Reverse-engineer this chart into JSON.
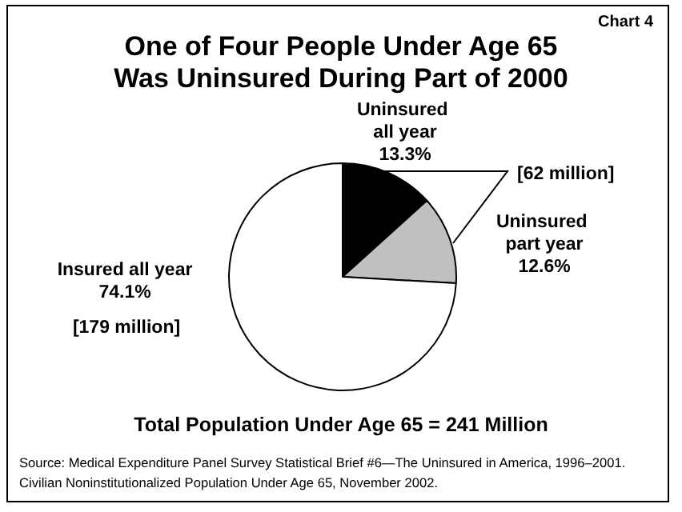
{
  "chart_data": {
    "type": "pie",
    "title": "One of Four People Under Age 65\nWas Uninsured During Part of 2000",
    "categories": [
      "Uninsured all year",
      "Uninsured part year",
      "Insured all year"
    ],
    "values": [
      13.3,
      12.6,
      74.1
    ],
    "colors": [
      "#000000",
      "#c0c0c0",
      "#ffffff"
    ],
    "value_labels": [
      "13.3%",
      "12.6%",
      "74.1%"
    ],
    "annotations": [
      "Chart 4",
      "[62 million]",
      "[179 million]",
      "Total Population Under Age 65 = 241 Million",
      "Source: Medical Expenditure Panel Survey Statistical Brief #6—The Uninsured in America, 1996–2001. Civilian Noninstitutionalized Population Under Age 65, November 2002."
    ]
  }
}
